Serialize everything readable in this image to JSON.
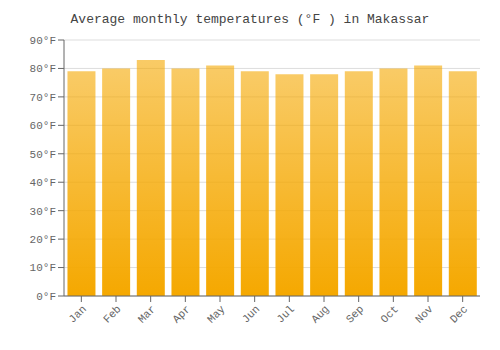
{
  "chart_data": {
    "type": "bar",
    "title": "Average monthly temperatures (°F ) in Makassar",
    "categories": [
      "Jan",
      "Feb",
      "Mar",
      "Apr",
      "May",
      "Jun",
      "Jul",
      "Aug",
      "Sep",
      "Oct",
      "Nov",
      "Dec"
    ],
    "values": [
      79,
      80,
      83,
      80,
      81,
      79,
      78,
      78,
      79,
      80,
      81,
      79
    ],
    "color": "#F5A800",
    "ylim": [
      0,
      90
    ],
    "yticks": [
      {
        "value": 0,
        "label": "0°F"
      },
      {
        "value": 10,
        "label": "10°F"
      },
      {
        "value": 20,
        "label": "20°F"
      },
      {
        "value": 30,
        "label": "30°F"
      },
      {
        "value": 40,
        "label": "40°F"
      },
      {
        "value": 50,
        "label": "50°F"
      },
      {
        "value": 60,
        "label": "60°F"
      },
      {
        "value": 70,
        "label": "70°F"
      },
      {
        "value": 80,
        "label": "80°F"
      },
      {
        "value": 90,
        "label": "90°F"
      }
    ],
    "grid": true
  }
}
